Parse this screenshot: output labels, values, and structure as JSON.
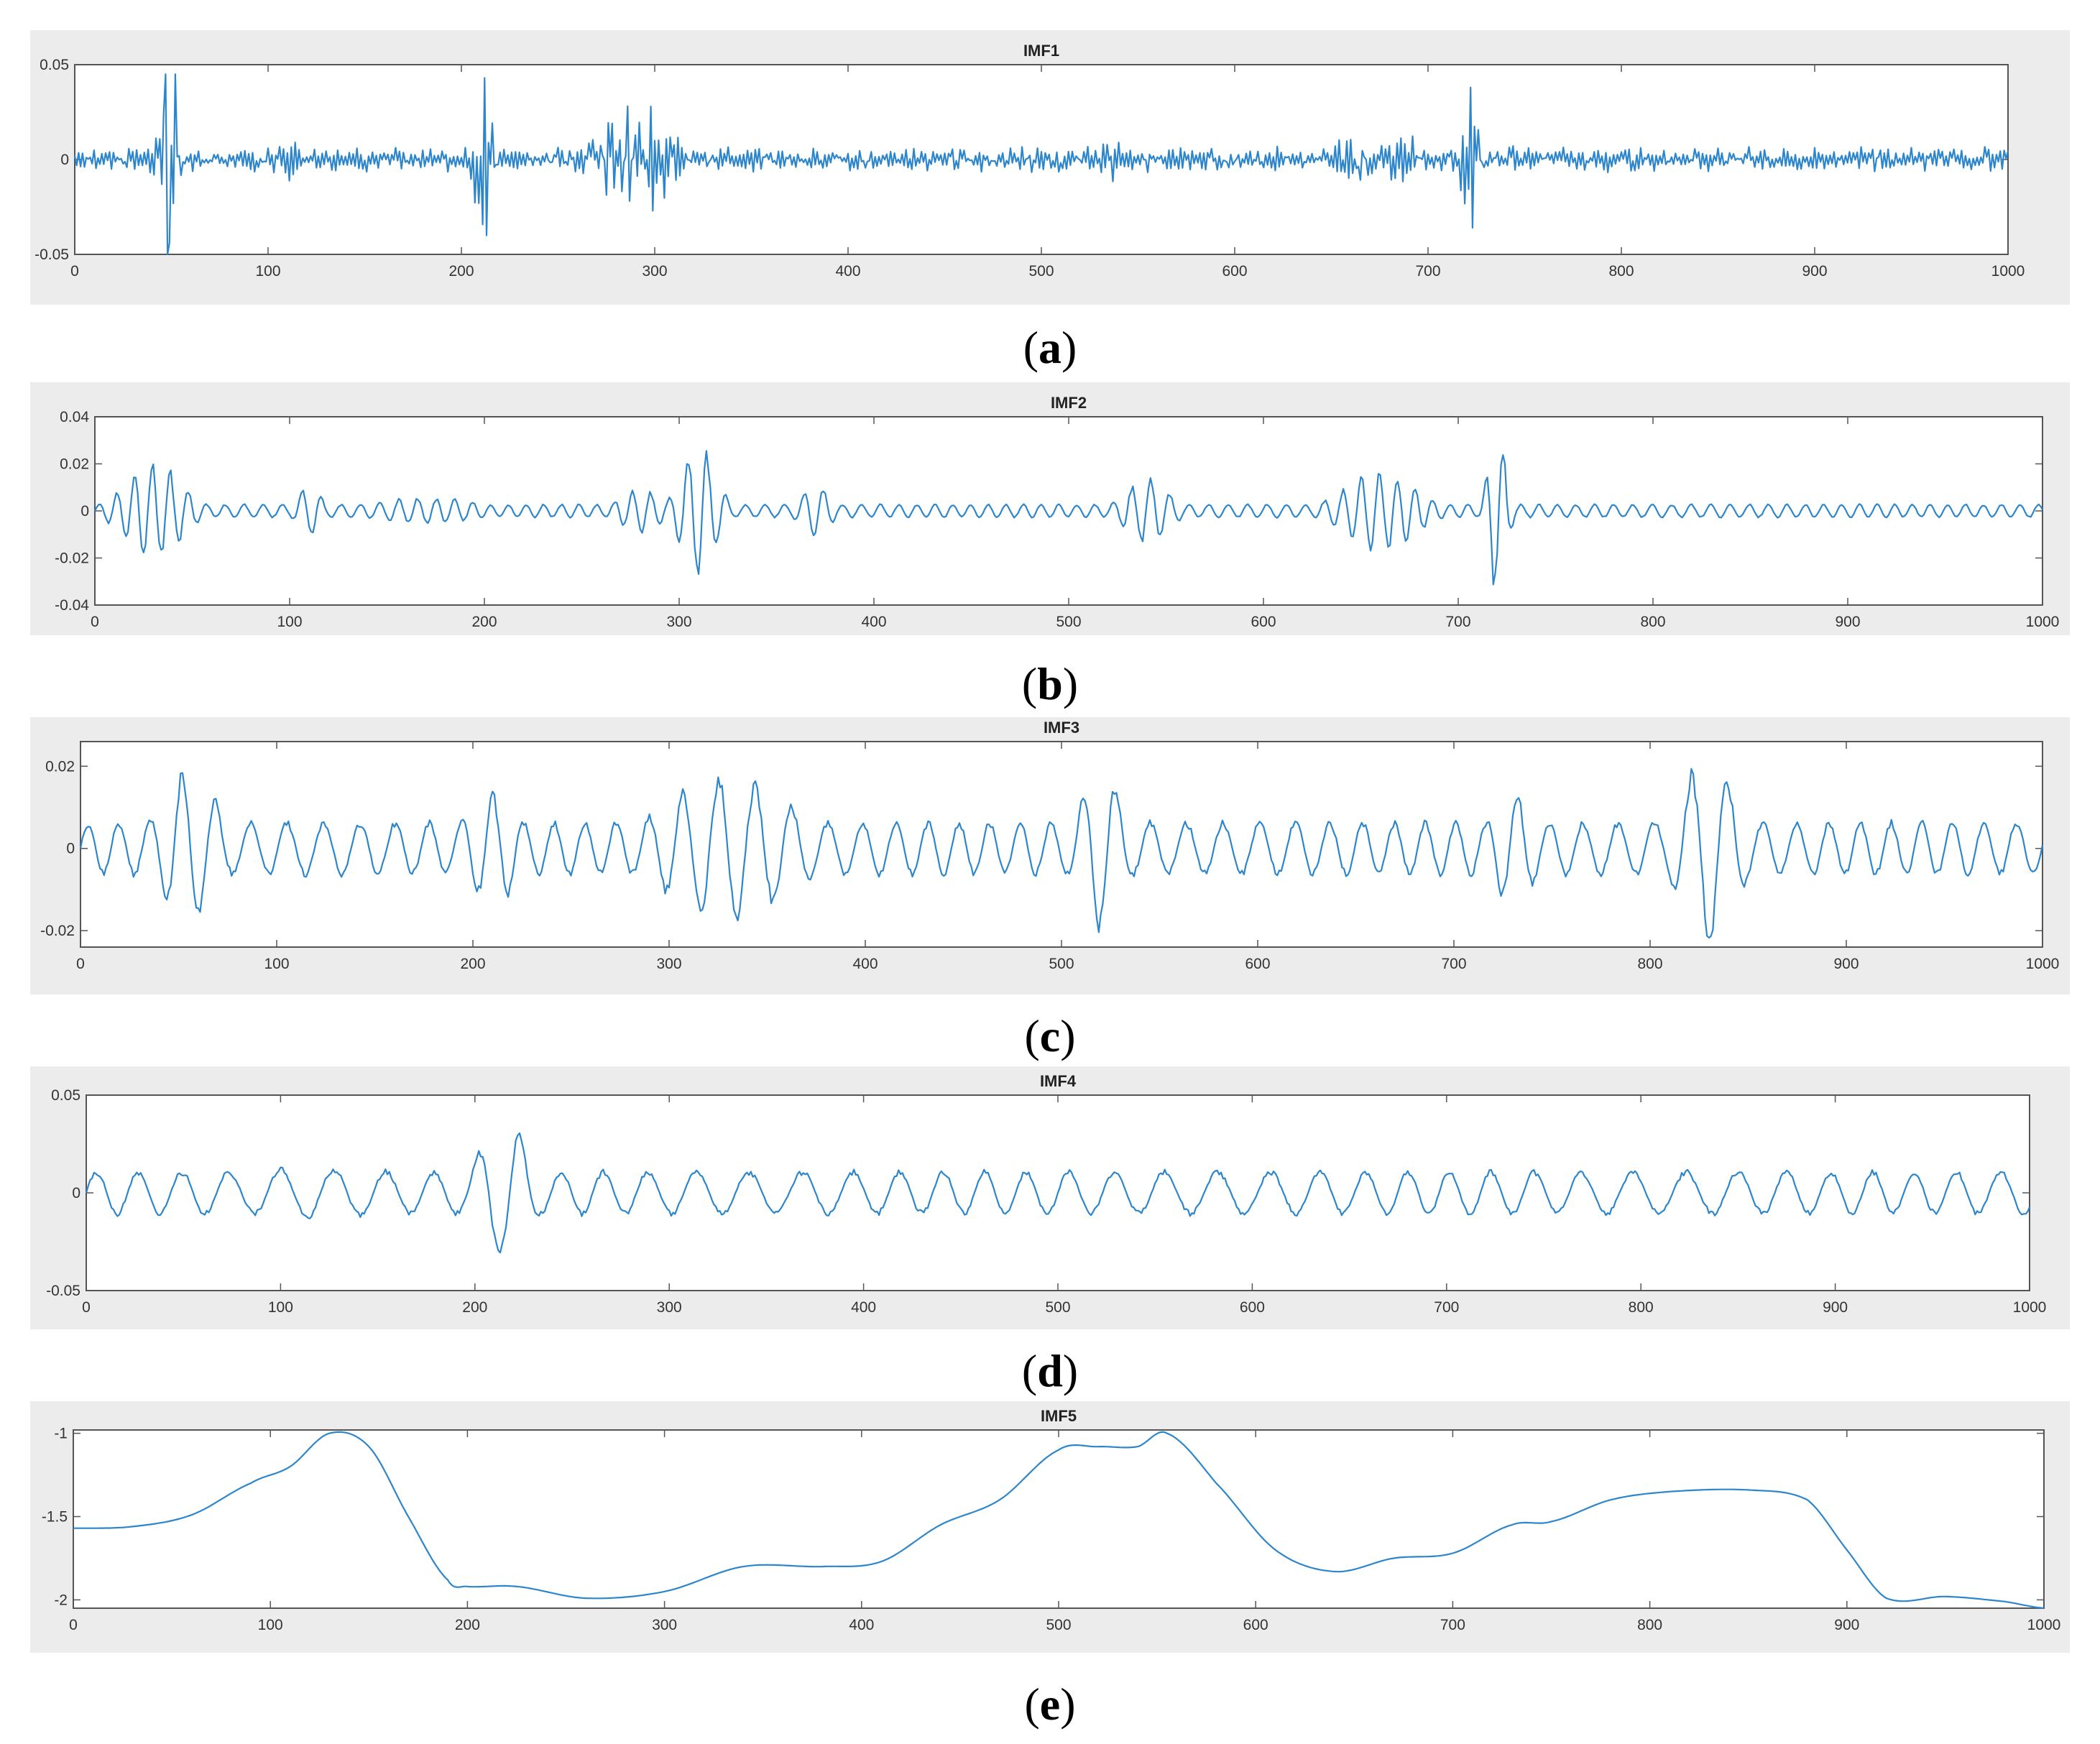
{
  "chart_data": [
    {
      "panel_id": "a",
      "type": "line",
      "title": "IMF1",
      "caption_letter": "a",
      "xlim": [
        0,
        1000
      ],
      "ylim": [
        -0.05,
        0.05
      ],
      "xticks": [
        0,
        100,
        200,
        300,
        400,
        500,
        600,
        700,
        800,
        900,
        1000
      ],
      "yticks": [
        -0.05,
        0,
        0.05
      ],
      "xtick_labels": [
        "0",
        "100",
        "200",
        "300",
        "400",
        "500",
        "600",
        "700",
        "800",
        "900",
        "1000"
      ],
      "ytick_labels": [
        "-0.05",
        "0",
        "0.05"
      ],
      "series_color": "#2d86cc",
      "signal": {
        "kind": "noise",
        "base_amplitude": 0.006,
        "bursts": [
          {
            "center": 48,
            "width": 6,
            "amplitude": 0.05
          },
          {
            "center": 110,
            "width": 8,
            "amplitude": 0.012
          },
          {
            "center": 212,
            "width": 6,
            "amplitude": 0.042
          },
          {
            "center": 290,
            "width": 25,
            "amplitude": 0.026
          },
          {
            "center": 535,
            "width": 10,
            "amplitude": 0.012
          },
          {
            "center": 660,
            "width": 8,
            "amplitude": 0.02
          },
          {
            "center": 722,
            "width": 6,
            "amplitude": 0.038
          },
          {
            "center": 685,
            "width": 20,
            "amplitude": 0.015
          }
        ],
        "peaks": [
          {
            "x": 47,
            "y": 0.045
          },
          {
            "x": 48,
            "y": -0.055
          },
          {
            "x": 52,
            "y": 0.045
          },
          {
            "x": 212,
            "y": 0.043
          },
          {
            "x": 213,
            "y": -0.04
          },
          {
            "x": 298,
            "y": 0.028
          },
          {
            "x": 299,
            "y": -0.027
          },
          {
            "x": 722,
            "y": 0.038
          },
          {
            "x": 723,
            "y": -0.036
          }
        ],
        "seed": 11
      }
    },
    {
      "panel_id": "b",
      "type": "line",
      "title": "IMF2",
      "caption_letter": "b",
      "xlim": [
        0,
        1000
      ],
      "ylim": [
        -0.04,
        0.04
      ],
      "xticks": [
        0,
        100,
        200,
        300,
        400,
        500,
        600,
        700,
        800,
        900,
        1000
      ],
      "yticks": [
        -0.04,
        -0.02,
        0,
        0.02,
        0.04
      ],
      "xtick_labels": [
        "0",
        "100",
        "200",
        "300",
        "400",
        "500",
        "600",
        "700",
        "800",
        "900",
        "1000"
      ],
      "ytick_labels": [
        "-0.04",
        "-0.02",
        "0",
        "0.02",
        "0.04"
      ],
      "series_color": "#2d86cc",
      "signal": {
        "kind": "oscillation",
        "period": 9.5,
        "base_amplitude": 0.003,
        "bursts": [
          {
            "center": 30,
            "width": 20,
            "amplitude": 0.022
          },
          {
            "center": 110,
            "width": 8,
            "amplitude": 0.012
          },
          {
            "center": 170,
            "width": 40,
            "amplitude": 0.006
          },
          {
            "center": 310,
            "width": 12,
            "amplitude": 0.03
          },
          {
            "center": 280,
            "width": 15,
            "amplitude": 0.01
          },
          {
            "center": 370,
            "width": 10,
            "amplitude": 0.012
          },
          {
            "center": 540,
            "width": 15,
            "amplitude": 0.015
          },
          {
            "center": 660,
            "width": 25,
            "amplitude": 0.018
          },
          {
            "center": 720,
            "width": 6,
            "amplitude": 0.038
          }
        ],
        "seed": 23
      }
    },
    {
      "panel_id": "c",
      "type": "line",
      "title": "IMF3",
      "caption_letter": "c",
      "xlim": [
        0,
        1000
      ],
      "ylim": [
        -0.024,
        0.026
      ],
      "xticks": [
        0,
        100,
        200,
        300,
        400,
        500,
        600,
        700,
        800,
        900,
        1000
      ],
      "yticks": [
        -0.02,
        0,
        0.02
      ],
      "xtick_labels": [
        "0",
        "100",
        "200",
        "300",
        "400",
        "500",
        "600",
        "700",
        "800",
        "900",
        "1000"
      ],
      "ytick_labels": [
        "-0.02",
        "0",
        "0.02"
      ],
      "series_color": "#2d86cc",
      "signal": {
        "kind": "oscillation",
        "period": 17,
        "base_amplitude": 0.007,
        "bursts": [
          {
            "center": 55,
            "width": 20,
            "amplitude": 0.02
          },
          {
            "center": 330,
            "width": 45,
            "amplitude": 0.019
          },
          {
            "center": 210,
            "width": 20,
            "amplitude": 0.014
          },
          {
            "center": 520,
            "width": 15,
            "amplitude": 0.022
          },
          {
            "center": 730,
            "width": 15,
            "amplitude": 0.015
          },
          {
            "center": 830,
            "width": 20,
            "amplitude": 0.024
          }
        ],
        "seed": 37
      }
    },
    {
      "panel_id": "d",
      "type": "line",
      "title": "IMF4",
      "caption_letter": "d",
      "xlim": [
        0,
        1000
      ],
      "ylim": [
        -0.05,
        0.05
      ],
      "xticks": [
        0,
        100,
        200,
        300,
        400,
        500,
        600,
        700,
        800,
        900,
        1000
      ],
      "yticks": [
        -0.05,
        0,
        0.05
      ],
      "xtick_labels": [
        "0",
        "100",
        "200",
        "300",
        "400",
        "500",
        "600",
        "700",
        "800",
        "900",
        "1000"
      ],
      "ytick_labels": [
        "-0.05",
        "0",
        "0.05"
      ],
      "series_color": "#2d86cc",
      "signal": {
        "kind": "oscillation",
        "period": 24,
        "base_amplitude": 0.012,
        "bursts": [
          {
            "center": 120,
            "width": 90,
            "amplitude": 0.014
          },
          {
            "center": 215,
            "width": 18,
            "amplitude": 0.038
          },
          {
            "center": 640,
            "width": 25,
            "amplitude": 0.01
          },
          {
            "center": 820,
            "width": 40,
            "amplitude": 0.012
          }
        ],
        "seed": 41
      }
    },
    {
      "panel_id": "e",
      "type": "line",
      "title": "IMF5",
      "caption_letter": "e",
      "xlim": [
        0,
        1000
      ],
      "ylim": [
        -2.05,
        -0.98
      ],
      "xticks": [
        0,
        100,
        200,
        300,
        400,
        500,
        600,
        700,
        800,
        900,
        1000
      ],
      "yticks": [
        -2,
        -1.5,
        -1
      ],
      "xtick_labels": [
        "0",
        "100",
        "200",
        "300",
        "400",
        "500",
        "600",
        "700",
        "800",
        "900",
        "1000"
      ],
      "ytick_labels": [
        "-2",
        "-1.5",
        "-1"
      ],
      "series_color": "#2d86cc",
      "x": [
        0,
        30,
        60,
        90,
        110,
        130,
        150,
        170,
        190,
        200,
        225,
        260,
        300,
        340,
        380,
        410,
        440,
        470,
        500,
        520,
        540,
        555,
        580,
        610,
        640,
        670,
        700,
        730,
        750,
        780,
        810,
        850,
        880,
        900,
        920,
        950,
        980,
        1000
      ],
      "y": [
        -1.57,
        -1.56,
        -1.49,
        -1.3,
        -1.2,
        -1.0,
        -1.08,
        -1.5,
        -1.88,
        -1.92,
        -1.92,
        -1.99,
        -1.95,
        -1.8,
        -1.8,
        -1.77,
        -1.55,
        -1.4,
        -1.1,
        -1.08,
        -1.08,
        -1.0,
        -1.3,
        -1.7,
        -1.83,
        -1.75,
        -1.72,
        -1.55,
        -1.53,
        -1.4,
        -1.35,
        -1.34,
        -1.4,
        -1.7,
        -1.99,
        -1.98,
        -2.01,
        -2.05
      ]
    }
  ]
}
